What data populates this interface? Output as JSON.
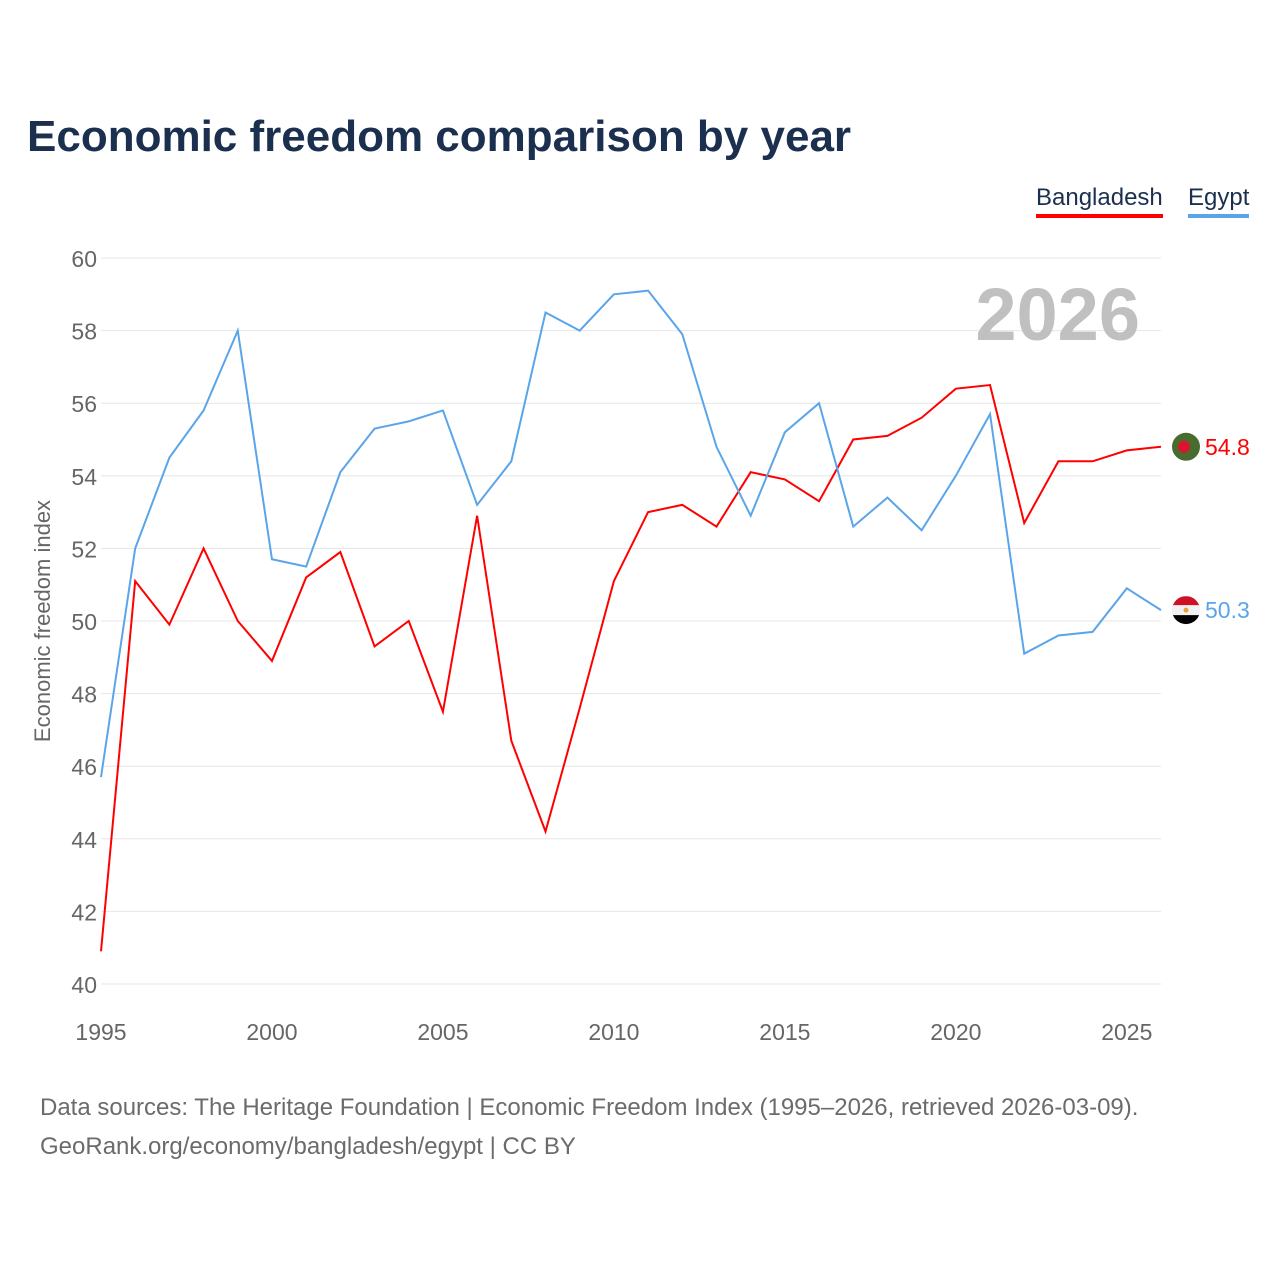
{
  "title": "Economic freedom comparison by year",
  "legend": [
    "Bangladesh",
    "Egypt"
  ],
  "source_line1": "Data sources: The Heritage Foundation | Economic Freedom Index (1995–2026, retrieved 2026-03-09).",
  "source_line2": "GeoRank.org/economy/bangladesh/egypt | CC BY",
  "chart_data": {
    "type": "line",
    "title": "Economic freedom comparison by year",
    "ylabel": "Economic freedom index",
    "xlabel": "",
    "xlim": [
      1995,
      2026
    ],
    "ylim": [
      40,
      60
    ],
    "yticks": [
      40,
      42,
      44,
      46,
      48,
      50,
      52,
      54,
      56,
      58,
      60
    ],
    "xticks": [
      1995,
      2000,
      2005,
      2010,
      2015,
      2020,
      2025
    ],
    "year_label": "2026",
    "grid": true,
    "legend_position": "top-right",
    "x": [
      1995,
      1996,
      1997,
      1998,
      1999,
      2000,
      2001,
      2002,
      2003,
      2004,
      2005,
      2006,
      2007,
      2008,
      2009,
      2010,
      2011,
      2012,
      2013,
      2014,
      2015,
      2016,
      2017,
      2018,
      2019,
      2020,
      2021,
      2022,
      2023,
      2024,
      2025,
      2026
    ],
    "series": [
      {
        "name": "Bangladesh",
        "color": "#ff0000",
        "end_label": "54.8",
        "values": [
          40.9,
          51.1,
          49.9,
          52.0,
          50.0,
          48.9,
          51.2,
          51.9,
          49.3,
          50.0,
          47.5,
          52.9,
          46.7,
          44.2,
          47.6,
          51.1,
          53.0,
          53.2,
          52.6,
          54.1,
          53.9,
          53.3,
          55.0,
          55.1,
          55.6,
          56.4,
          56.5,
          52.7,
          54.4,
          54.4,
          54.7,
          54.8
        ]
      },
      {
        "name": "Egypt",
        "color": "#5aa5ea",
        "end_label": "50.3",
        "values": [
          45.7,
          52.0,
          54.5,
          55.8,
          58.0,
          51.7,
          51.5,
          54.1,
          55.3,
          55.5,
          55.8,
          53.2,
          54.4,
          58.5,
          58.0,
          59.0,
          59.1,
          57.9,
          54.8,
          52.9,
          55.2,
          56.0,
          52.6,
          53.4,
          52.5,
          54.0,
          55.7,
          49.1,
          49.6,
          49.7,
          50.9,
          50.3
        ]
      }
    ]
  }
}
